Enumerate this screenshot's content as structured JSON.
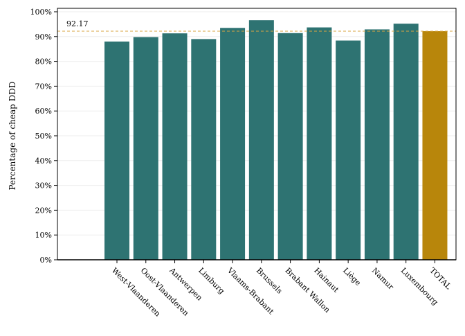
{
  "chart_data": {
    "type": "bar",
    "ylabel": "Percentage of cheap DDD",
    "xlabel": "",
    "title": "",
    "ylim": [
      0,
      100
    ],
    "ytick_values": [
      0,
      10,
      20,
      30,
      40,
      50,
      60,
      70,
      80,
      90,
      100
    ],
    "ytick_labels": [
      "0%",
      "10%",
      "20%",
      "30%",
      "40%",
      "50%",
      "60%",
      "70%",
      "80%",
      "90%",
      "100%"
    ],
    "categories": [
      "West-Vlaanderen",
      "Oost-Vlaanderen",
      "Antwerpen",
      "Limburg",
      "Vlaams-Brabant",
      "Brussels",
      "Brabant Wallon",
      "Hainaut",
      "Liège",
      "Namur",
      "Luxembourg",
      "TOTAL"
    ],
    "values": [
      88.0,
      89.8,
      91.3,
      89.0,
      93.5,
      96.6,
      91.4,
      93.7,
      88.4,
      92.9,
      95.2,
      92.17
    ],
    "highlight_category": "TOTAL",
    "reference_line": {
      "value": 92.17,
      "label": "92.17"
    },
    "colors": {
      "bar": "#2e7372",
      "highlight": "#b8860b",
      "reference_line": "#d9a441",
      "grid": "#eeeeee"
    },
    "grid": true,
    "legend": "none"
  }
}
